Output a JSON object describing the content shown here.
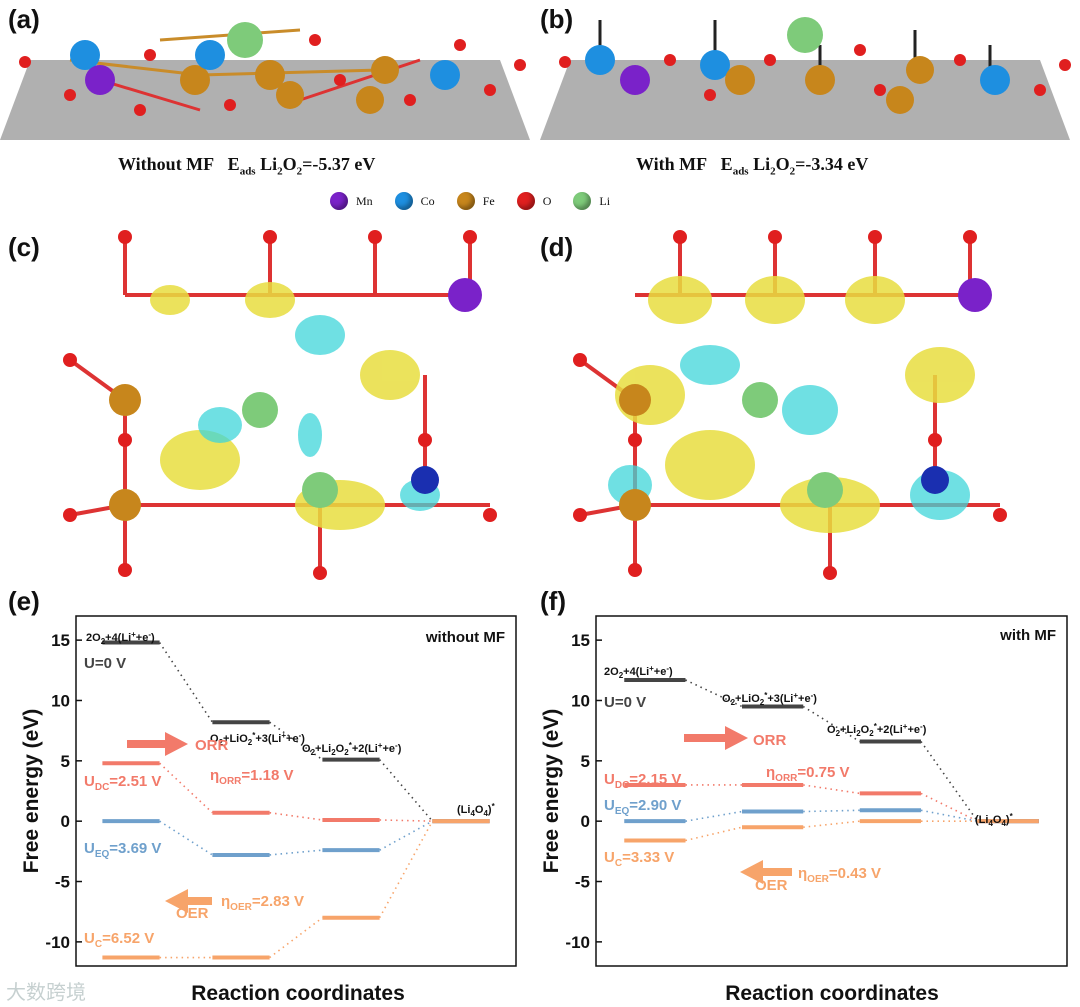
{
  "labels": {
    "a": "(a)",
    "b": "(b)",
    "c": "(c)",
    "d": "(d)",
    "e": "(e)",
    "f": "(f)"
  },
  "captions": {
    "a_prefix": "Without MF",
    "a_energy": "=-5.37 eV",
    "b_prefix": "With MF",
    "b_energy": "=-3.34 eV",
    "eads": "E",
    "eads_sub": "ads",
    "li": " Li",
    "li_sub": "2",
    "o": "O",
    "o_sub": "2"
  },
  "legend": [
    {
      "name": "Mn",
      "color": "#7a22c9"
    },
    {
      "name": "Co",
      "color": "#1e8fe0"
    },
    {
      "name": "Fe",
      "color": "#c7861c"
    },
    {
      "name": "O",
      "color": "#e01f1f"
    },
    {
      "name": "Li",
      "color": "#7ecb7a"
    }
  ],
  "chart_data": [
    {
      "type": "line",
      "panel": "(e)",
      "title": "without MF",
      "xlabel": "Reaction coordinates",
      "ylabel": "Free energy (eV)",
      "ylim": [
        -12,
        17
      ],
      "yticks": [
        -10,
        -5,
        0,
        5,
        10,
        15
      ],
      "states": [
        "2O2+4(Li++e-)",
        "O2+LiO2*+3(Li++e-)",
        "O2+Li2O2*+2(Li++e-)",
        "(Li4O4)*"
      ],
      "series": [
        {
          "name": "U=0 V",
          "color": "#444444",
          "values": [
            14.8,
            8.2,
            5.1,
            0
          ]
        },
        {
          "name": "UDC=2.51 V",
          "color": "#f27a6a",
          "values": [
            4.8,
            0.7,
            0.1,
            0
          ]
        },
        {
          "name": "UEQ=3.69 V",
          "color": "#6fa0cc",
          "values": [
            0,
            -2.8,
            -2.4,
            0
          ]
        },
        {
          "name": "UC=6.52 V",
          "color": "#f7a46a",
          "values": [
            -11.3,
            -11.3,
            -8.0,
            0
          ]
        }
      ],
      "annotations": {
        "orr": "ORR",
        "eta_orr": "ηORR=1.18 V",
        "oer": "OER",
        "eta_oer": "ηOER=2.83 V",
        "u0": "U=0 V",
        "udc": "UDC=2.51 V",
        "ueq": "UEQ=3.69 V",
        "uc": "UC=6.52 V"
      }
    },
    {
      "type": "line",
      "panel": "(f)",
      "title": "with MF",
      "xlabel": "Reaction coordinates",
      "ylabel": "Free energy (eV)",
      "ylim": [
        -12,
        17
      ],
      "yticks": [
        -10,
        -5,
        0,
        5,
        10,
        15
      ],
      "states": [
        "2O2+4(Li++e-)",
        "O2+LiO2*+3(Li++e-)",
        "O2+Li2O2*+2(Li++e-)",
        "(Li4O4)*"
      ],
      "series": [
        {
          "name": "U=0 V",
          "color": "#444444",
          "values": [
            11.7,
            9.5,
            6.6,
            0
          ]
        },
        {
          "name": "UDC=2.15 V",
          "color": "#f27a6a",
          "values": [
            3.0,
            3.0,
            2.3,
            0
          ]
        },
        {
          "name": "UEQ=2.90 V",
          "color": "#6fa0cc",
          "values": [
            0,
            0.8,
            0.9,
            0
          ]
        },
        {
          "name": "UC=3.33 V",
          "color": "#f7a46a",
          "values": [
            -1.6,
            -0.5,
            0,
            0
          ]
        }
      ],
      "annotations": {
        "orr": "ORR",
        "eta_orr": "ηORR=0.75 V",
        "oer": "OER",
        "eta_oer": "ηOER=0.43 V",
        "u0": "U=0 V",
        "udc": "UDC=2.15 V",
        "ueq": "UEQ=2.90 V",
        "uc": "UC=3.33 V"
      }
    }
  ],
  "watermark": "大数跨境"
}
